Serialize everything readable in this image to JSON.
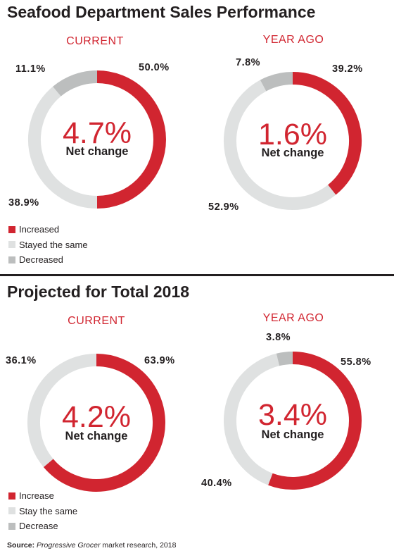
{
  "colors": {
    "increased": "#d12530",
    "same": "#dfe1e1",
    "decreased": "#bcbebe",
    "accent_text": "#d12530",
    "text": "#231f20"
  },
  "chart_data": [
    {
      "type": "pie",
      "title": "Seafood Department Sales Performance",
      "subtitle": "CURRENT",
      "center_value": "4.7%",
      "center_label": "Net change",
      "slices": [
        {
          "label": "Increased",
          "value": 50.0,
          "text": "50.0%"
        },
        {
          "label": "Stayed the same",
          "value": 38.9,
          "text": "38.9%"
        },
        {
          "label": "Decreased",
          "value": 11.1,
          "text": "11.1%"
        }
      ]
    },
    {
      "type": "pie",
      "title": "Seafood Department Sales Performance",
      "subtitle": "YEAR AGO",
      "center_value": "1.6%",
      "center_label": "Net change",
      "slices": [
        {
          "label": "Increased",
          "value": 39.2,
          "text": "39.2%"
        },
        {
          "label": "Stayed the same",
          "value": 52.9,
          "text": "52.9%"
        },
        {
          "label": "Decreased",
          "value": 7.8,
          "text": "7.8%"
        }
      ]
    },
    {
      "type": "pie",
      "title": "Projected for Total 2018",
      "subtitle": "CURRENT",
      "center_value": "4.2%",
      "center_label": "Net change",
      "slices": [
        {
          "label": "Increase",
          "value": 63.9,
          "text": "63.9%"
        },
        {
          "label": "Stay the same",
          "value": 36.1,
          "text": "36.1%"
        },
        {
          "label": "Decrease",
          "value": 0,
          "text": ""
        }
      ]
    },
    {
      "type": "pie",
      "title": "Projected for Total 2018",
      "subtitle": "YEAR AGO",
      "center_value": "3.4%",
      "center_label": "Net change",
      "slices": [
        {
          "label": "Increase",
          "value": 55.8,
          "text": "55.8%"
        },
        {
          "label": "Stay the same",
          "value": 40.4,
          "text": "40.4%"
        },
        {
          "label": "Decrease",
          "value": 3.8,
          "text": "3.8%"
        }
      ]
    }
  ],
  "sections": [
    {
      "title": "Seafood Department Sales Performance",
      "legend": [
        "Increased",
        "Stayed the same",
        "Decreased"
      ]
    },
    {
      "title": "Projected for Total 2018",
      "legend": [
        "Increase",
        "Stay the same",
        "Decrease"
      ]
    }
  ],
  "source": {
    "label": "Source:",
    "publication": "Progressive Grocer",
    "rest": " market research, 2018"
  }
}
